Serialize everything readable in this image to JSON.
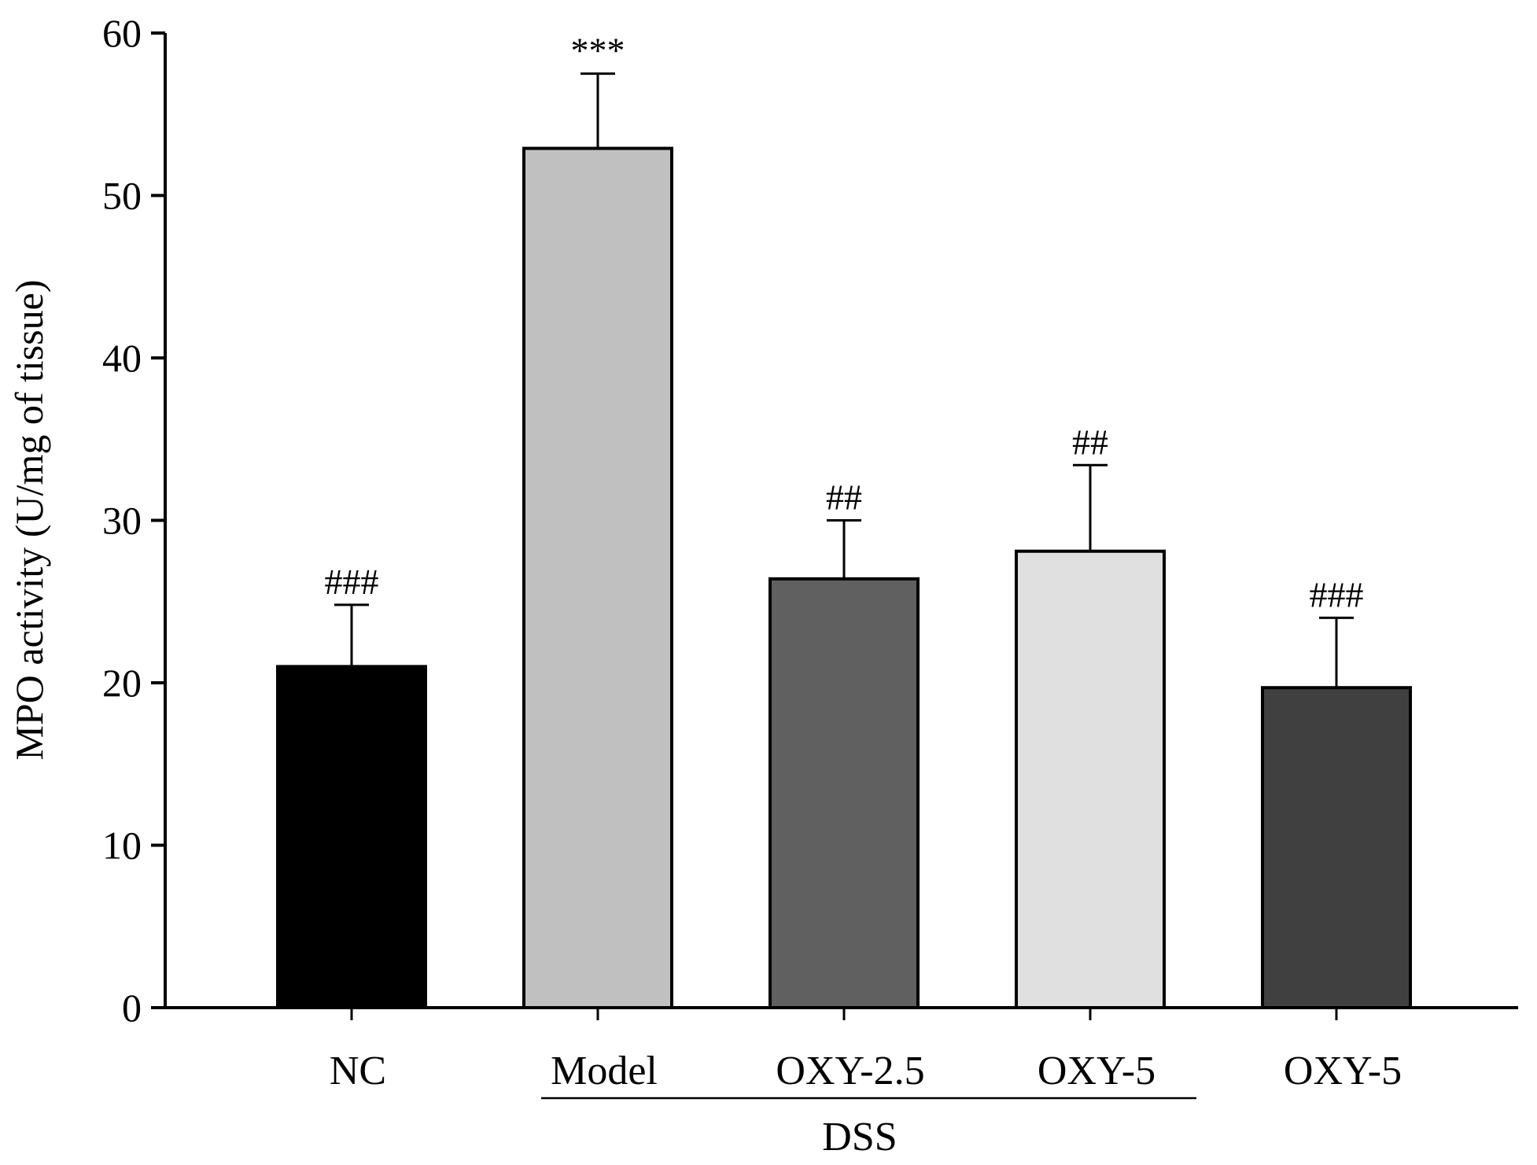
{
  "chart_data": {
    "type": "bar",
    "title": "",
    "xlabel": "",
    "ylabel": "MPO activity (U/mg of tissue)",
    "ylim": [
      0,
      60
    ],
    "yticks": [
      0,
      10,
      20,
      30,
      40,
      50,
      60
    ],
    "grid": false,
    "categories": [
      "NC",
      "Model",
      "OXY-2.5",
      "OXY-5",
      "OXY-5"
    ],
    "values": [
      21.0,
      52.9,
      26.4,
      28.1,
      19.7
    ],
    "errors": [
      3.8,
      4.6,
      3.6,
      5.3,
      4.3
    ],
    "significance": [
      "###",
      "***",
      "##",
      "##",
      "###"
    ],
    "bar_colors": [
      "#000000",
      "#c0c0c0",
      "#606060",
      "#e0e0e0",
      "#404040"
    ],
    "group": {
      "label": "DSS",
      "from_category": 1,
      "to_category": 3
    }
  }
}
